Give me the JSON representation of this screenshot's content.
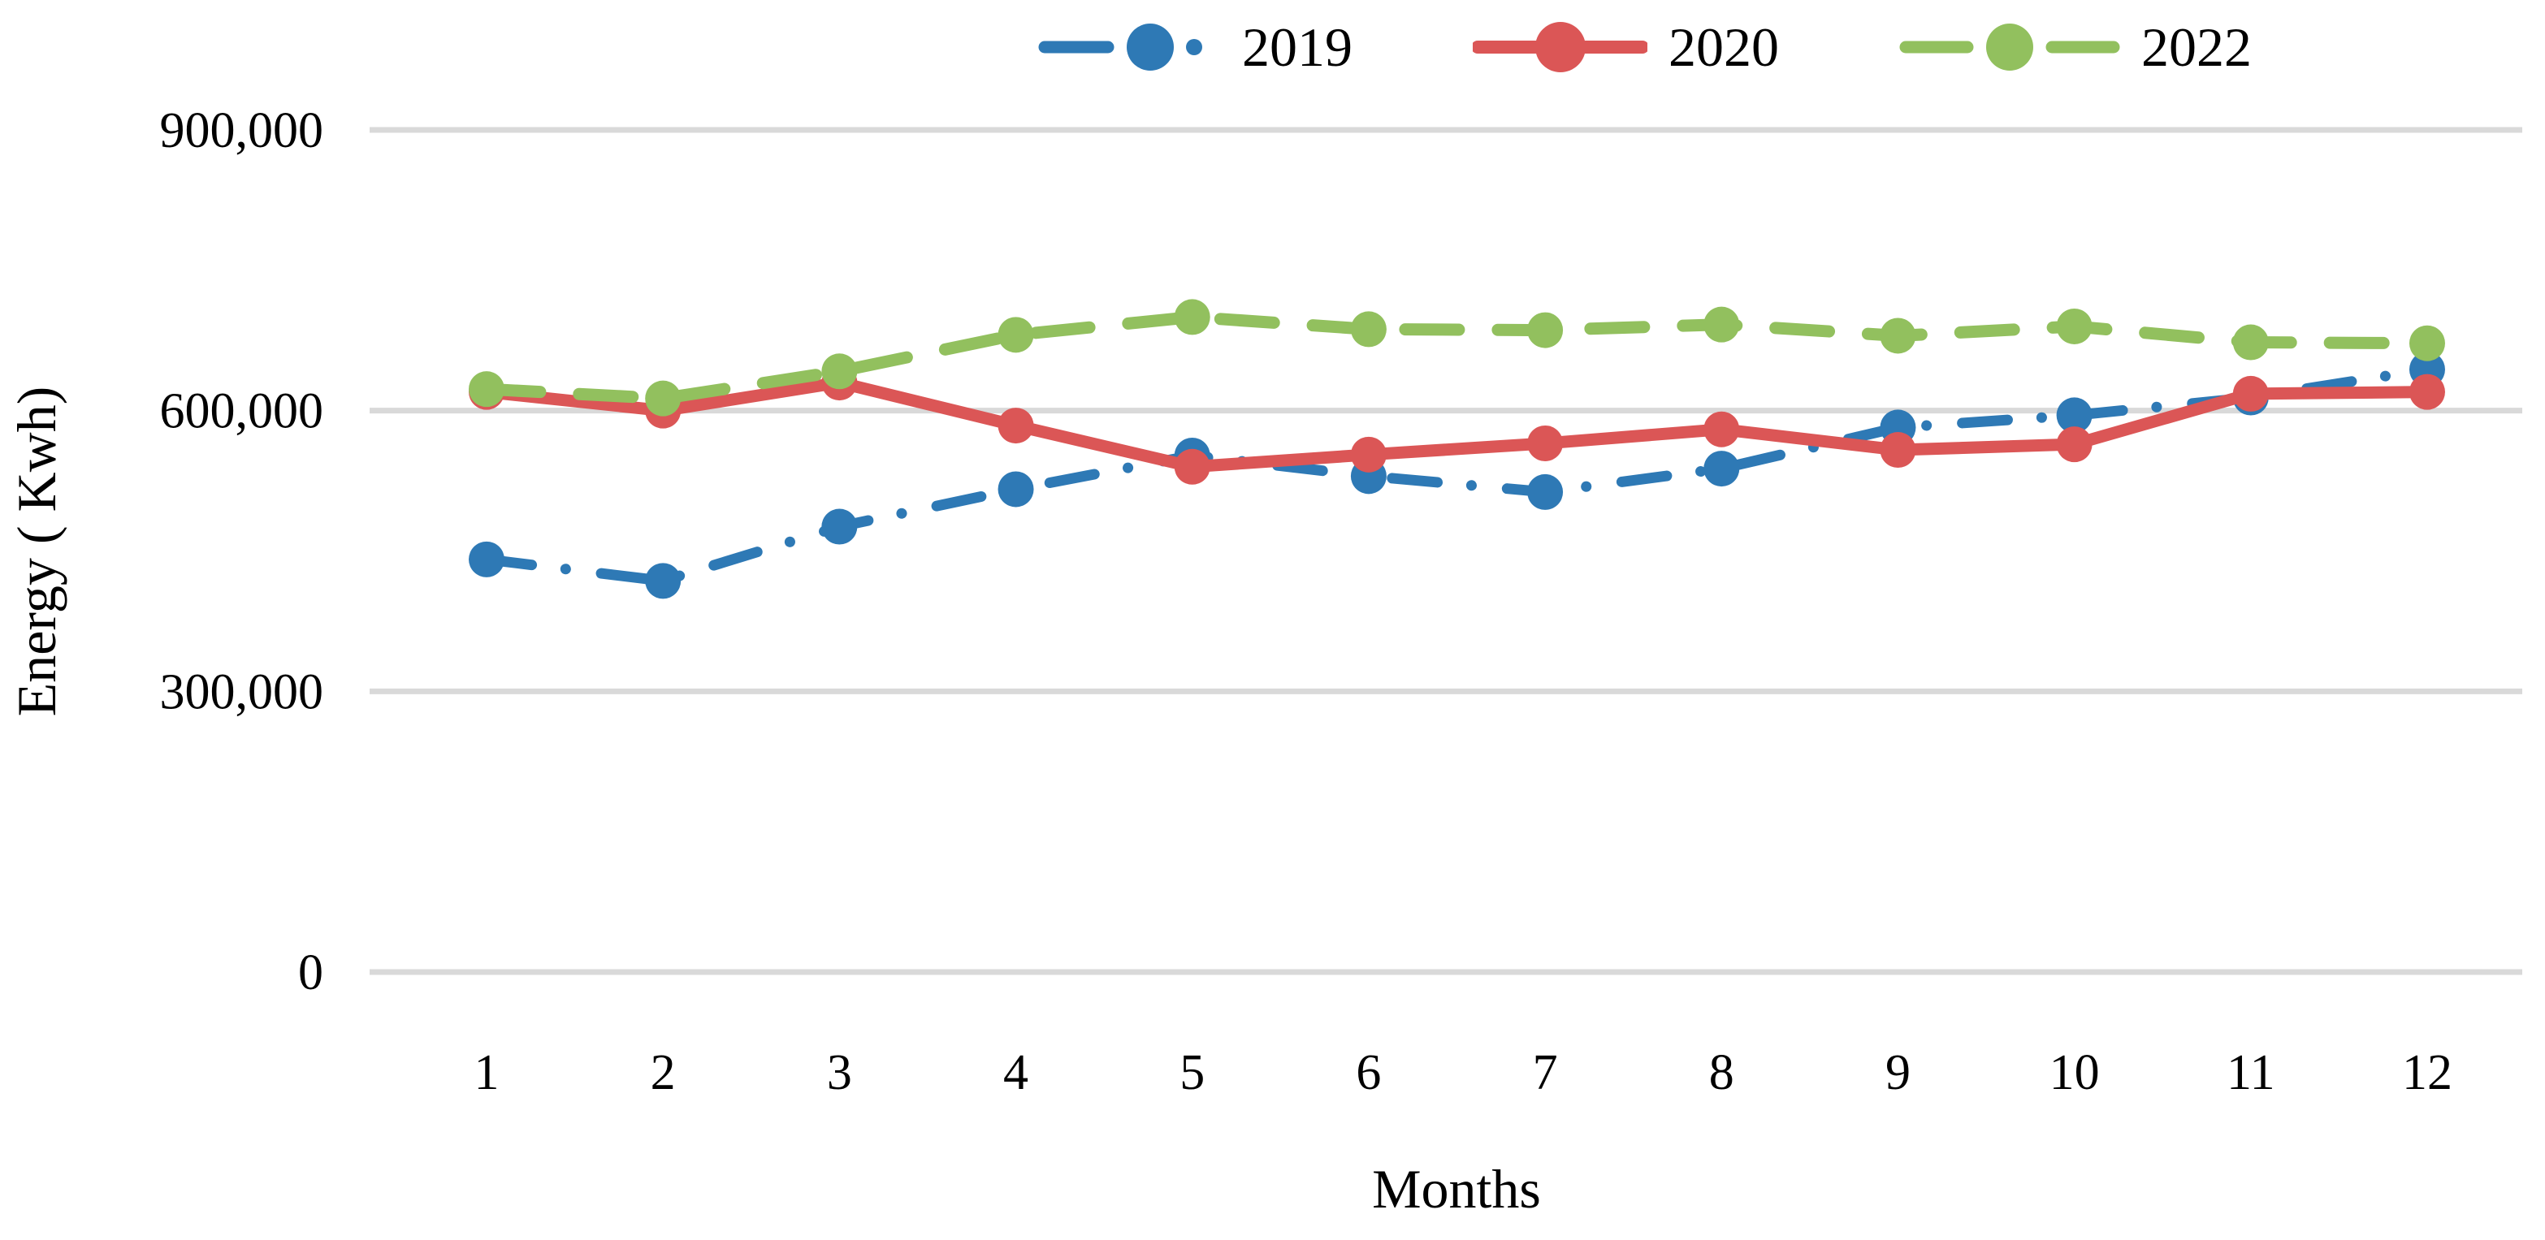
{
  "figure": {
    "background": "#FFFFFF"
  },
  "chart_data": {
    "type": "line",
    "title": "",
    "xlabel": "Months",
    "ylabel": "Energy ( Kwh)",
    "x": [
      1,
      2,
      3,
      4,
      5,
      6,
      7,
      8,
      9,
      10,
      11,
      12
    ],
    "x_tick_labels": [
      "1",
      "2",
      "3",
      "4",
      "5",
      "6",
      "7",
      "8",
      "9",
      "10",
      "11",
      "12"
    ],
    "ylim": [
      0,
      900000
    ],
    "y_ticks": [
      0,
      300000,
      600000,
      900000
    ],
    "y_tick_labels": [
      "0",
      "300,000",
      "600,000",
      "900,000"
    ],
    "grid": "horizontal-gridlines",
    "gridline_color": "#D9D9D9",
    "legend_position": "top-center",
    "series": [
      {
        "name": "2019",
        "color": "#2E79B5",
        "line_style": "dash-dot",
        "marker": "circle",
        "values": [
          441000,
          418000,
          476000,
          516000,
          552000,
          530000,
          513000,
          538000,
          582000,
          595000,
          614000,
          644000
        ]
      },
      {
        "name": "2020",
        "color": "#DB5656",
        "line_style": "solid",
        "marker": "circle",
        "values": [
          620000,
          600000,
          630000,
          584000,
          540000,
          553000,
          565000,
          580000,
          558000,
          564000,
          618000,
          620000
        ]
      },
      {
        "name": "2022",
        "color": "#92C05E",
        "line_style": "dash",
        "marker": "circle",
        "values": [
          623000,
          613000,
          642000,
          681000,
          700000,
          687000,
          686000,
          692000,
          680000,
          690000,
          673000,
          672000
        ]
      }
    ]
  }
}
